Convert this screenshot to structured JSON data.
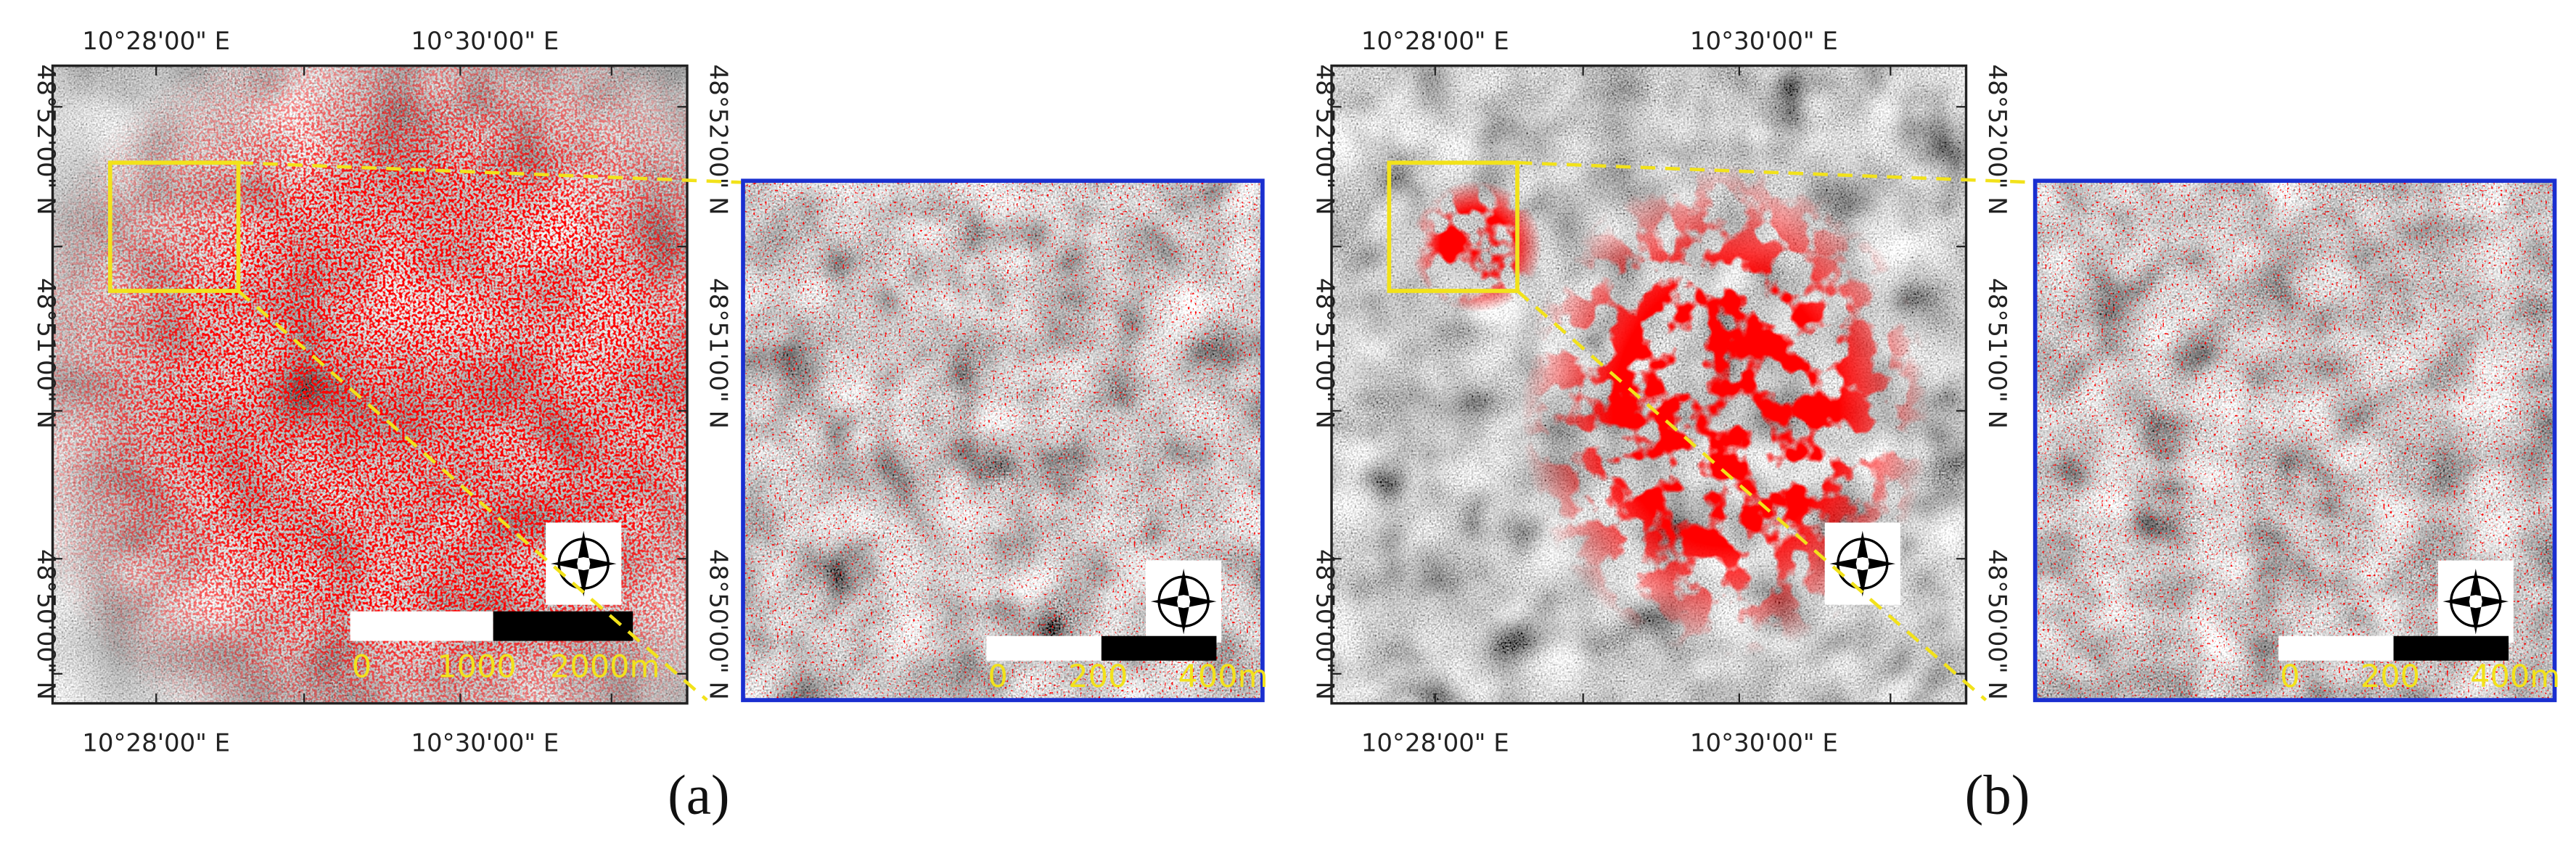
{
  "panels": [
    {
      "caption": "(a)",
      "map": {
        "top_labels": [
          "10°28'00\" E",
          "10°30'00\" E"
        ],
        "bottom_labels": [
          "10°28'00\" E",
          "10°30'00\" E"
        ],
        "left_labels": [
          "48°52'00\" N",
          "48°51'00\" N",
          "48°50'00\" N"
        ],
        "right_labels": [
          "48°52'00\" N",
          "48°51'00\" N",
          "48°50'00\" N"
        ],
        "scale_labels": [
          "0",
          "1000",
          "2000m"
        ]
      },
      "inset": {
        "scale_labels": [
          "0",
          "200",
          "400m"
        ]
      }
    },
    {
      "caption": "(b)",
      "map": {
        "top_labels": [
          "10°28'00\" E",
          "10°30'00\" E"
        ],
        "bottom_labels": [
          "10°28'00\" E",
          "10°30'00\" E"
        ],
        "left_labels": [
          "48°52'00\" N",
          "48°51'00\" N",
          "48°50'00\" N"
        ],
        "right_labels": [
          "48°52'00\" N",
          "48°51'00\" N",
          "48°50'00\" N"
        ]
      },
      "inset": {
        "scale_labels": [
          "0",
          "200",
          "400m"
        ]
      }
    }
  ]
}
